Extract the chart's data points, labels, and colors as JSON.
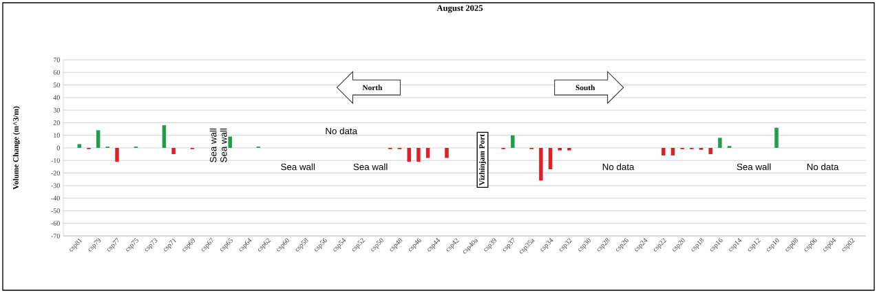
{
  "chart_data": {
    "type": "bar",
    "title": "August 2025",
    "ylabel": "Volume Change (m^3/m)",
    "categories": [
      "csp81",
      null,
      "csp79",
      null,
      "csp77",
      null,
      "csp75",
      null,
      "csp73",
      null,
      "csp71",
      null,
      "csp69",
      null,
      "csp67",
      null,
      "csp65",
      null,
      "csp64",
      null,
      "csp62",
      null,
      "csp60",
      null,
      "csp58",
      null,
      "csp56",
      null,
      "csp54",
      null,
      "csp52",
      null,
      "csp50",
      null,
      "csp48",
      null,
      "csp46",
      null,
      "csp44",
      null,
      "csp42",
      null,
      "csp40a",
      null,
      "csp39",
      null,
      "csp37",
      null,
      "csp35a",
      null,
      "csp34",
      null,
      "csp32",
      null,
      "csp30",
      null,
      "csp28",
      null,
      "csp26",
      null,
      "csp24",
      null,
      "csp22",
      null,
      "csp20",
      null,
      "csp18",
      null,
      "csp16",
      null,
      "csp14",
      null,
      "csp12",
      null,
      "csp10",
      null,
      "csp08",
      null,
      "csp06",
      null,
      "csp04",
      null,
      "csp02"
    ],
    "values": [
      3,
      -1,
      14,
      1,
      -11,
      null,
      1,
      null,
      null,
      18,
      -5,
      null,
      -1,
      null,
      null,
      null,
      9,
      null,
      null,
      1,
      null,
      null,
      null,
      null,
      null,
      null,
      null,
      null,
      null,
      null,
      null,
      null,
      null,
      -1,
      -1,
      -11,
      -11,
      -8,
      null,
      -8,
      null,
      null,
      null,
      null,
      null,
      -1,
      10,
      null,
      -1,
      -26,
      -17,
      -2,
      -2,
      null,
      null,
      null,
      null,
      null,
      null,
      null,
      null,
      null,
      -6,
      -6,
      -1,
      -1,
      -1.5,
      -5,
      8,
      1.5,
      null,
      null,
      null,
      null,
      16,
      null,
      null,
      null,
      null,
      null,
      null,
      null,
      null
    ],
    "colors": [
      "#1f9e4c",
      "#e11f26",
      "#1f9e4c",
      "#1f9e4c",
      "#e11f26",
      null,
      "#1f9e4c",
      null,
      null,
      "#1f9e4c",
      "#e11f26",
      null,
      "#e11f26",
      null,
      null,
      null,
      "#1f9e4c",
      null,
      null,
      "#1f9e4c",
      null,
      null,
      null,
      null,
      null,
      null,
      null,
      null,
      null,
      null,
      null,
      null,
      null,
      "#e11f26",
      "#e11f26",
      "#e11f26",
      "#e11f26",
      "#e11f26",
      null,
      "#e11f26",
      null,
      null,
      null,
      null,
      null,
      "#e11f26",
      "#1f9e4c",
      null,
      "#e11f26",
      "#e11f26",
      "#e11f26",
      "#e11f26",
      "#e11f26",
      null,
      null,
      null,
      null,
      null,
      null,
      null,
      null,
      null,
      "#e11f26",
      "#e11f26",
      "#e11f26",
      "#e11f26",
      "#e11f26",
      "#e11f26",
      "#1f9e4c",
      "#1f9e4c",
      null,
      null,
      null,
      null,
      "#1f9e4c",
      null,
      null,
      null,
      null,
      null,
      null,
      null,
      null
    ],
    "ylim": [
      -70,
      70
    ],
    "yticks": [
      -70,
      -60,
      -50,
      -40,
      -30,
      -20,
      -10,
      0,
      10,
      20,
      30,
      40,
      50,
      60,
      70
    ],
    "grid": "y",
    "annotations": [
      "North",
      "South",
      "Vizhinjam Port",
      "No data",
      "Sea wall",
      "Sea wall",
      "Sea wall",
      "Sea wall",
      "No data",
      "Sea wall",
      "No data"
    ]
  }
}
